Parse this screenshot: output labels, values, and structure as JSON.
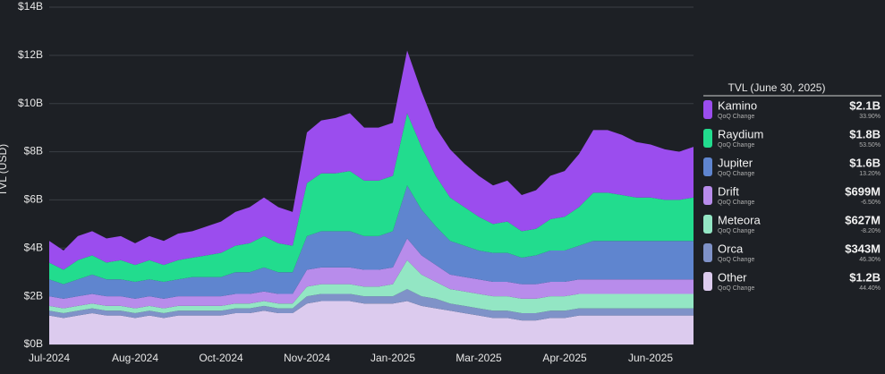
{
  "chart_data": {
    "type": "stacked-area",
    "y_label": "TVL (USD)",
    "legend_title": "TVL (June 30, 2025)",
    "qoq_caption": "QoQ Change",
    "categories": [
      "Jul-2024",
      null,
      null,
      null,
      null,
      null,
      "Aug-2024",
      null,
      null,
      null,
      null,
      null,
      "Oct-2024",
      null,
      null,
      null,
      null,
      null,
      "Nov-2024",
      null,
      null,
      null,
      null,
      null,
      "Jan-2025",
      null,
      null,
      null,
      null,
      null,
      "Mar-2025",
      null,
      null,
      null,
      null,
      null,
      "Apr-2025",
      null,
      null,
      null,
      null,
      null,
      "Jun-2025",
      null,
      null,
      null
    ],
    "ylim": [
      0,
      14
    ],
    "yticks": [
      {
        "value": 0,
        "label": "$0B"
      },
      {
        "value": 2,
        "label": "$2B"
      },
      {
        "value": 4,
        "label": "$4B"
      },
      {
        "value": 6,
        "label": "$6B"
      },
      {
        "value": 8,
        "label": "$8B"
      },
      {
        "value": 10,
        "label": "$10B"
      },
      {
        "value": 12,
        "label": "$12B"
      },
      {
        "value": 14,
        "label": "$14B"
      }
    ],
    "grid": true,
    "series": [
      {
        "name": "Kamino",
        "color": "#9b4dee",
        "total": "$2.1B",
        "qoq_change": "33.90%",
        "values": [
          0.9,
          0.8,
          1.0,
          1.0,
          1.0,
          1.0,
          0.9,
          1.0,
          1.0,
          1.1,
          1.1,
          1.2,
          1.3,
          1.4,
          1.5,
          1.6,
          1.5,
          1.4,
          2.1,
          2.2,
          2.3,
          2.4,
          2.2,
          2.2,
          2.2,
          2.6,
          2.3,
          2.0,
          2.0,
          1.8,
          1.7,
          1.6,
          1.7,
          1.5,
          1.6,
          1.8,
          1.9,
          2.2,
          2.6,
          2.6,
          2.5,
          2.3,
          2.2,
          2.1,
          2.0,
          2.1
        ]
      },
      {
        "name": "Raydium",
        "color": "#22dc8e",
        "total": "$1.8B",
        "qoq_change": "53.50%",
        "values": [
          0.7,
          0.6,
          0.8,
          0.8,
          0.7,
          0.8,
          0.7,
          0.8,
          0.7,
          0.8,
          0.8,
          0.9,
          1.0,
          1.1,
          1.2,
          1.3,
          1.2,
          1.1,
          2.2,
          2.4,
          2.4,
          2.5,
          2.3,
          2.3,
          2.3,
          3.0,
          2.6,
          2.1,
          1.8,
          1.6,
          1.4,
          1.2,
          1.3,
          1.1,
          1.1,
          1.3,
          1.4,
          1.6,
          2.0,
          2.0,
          1.9,
          1.8,
          1.8,
          1.7,
          1.7,
          1.8
        ]
      },
      {
        "name": "Jupiter",
        "color": "#5f85cf",
        "total": "$1.6B",
        "qoq_change": "13.20%",
        "values": [
          0.7,
          0.6,
          0.7,
          0.8,
          0.7,
          0.7,
          0.7,
          0.7,
          0.7,
          0.7,
          0.8,
          0.8,
          0.8,
          0.9,
          0.9,
          1.0,
          0.9,
          0.9,
          1.4,
          1.5,
          1.5,
          1.5,
          1.4,
          1.4,
          1.5,
          2.2,
          1.9,
          1.6,
          1.4,
          1.3,
          1.2,
          1.2,
          1.2,
          1.1,
          1.2,
          1.3,
          1.3,
          1.4,
          1.6,
          1.6,
          1.6,
          1.6,
          1.6,
          1.6,
          1.6,
          1.6
        ]
      },
      {
        "name": "Drift",
        "color": "#b88ceb",
        "total": "$699M",
        "qoq_change": "-6.50%",
        "values": [
          0.4,
          0.4,
          0.4,
          0.4,
          0.4,
          0.4,
          0.4,
          0.4,
          0.4,
          0.4,
          0.4,
          0.4,
          0.4,
          0.4,
          0.4,
          0.4,
          0.4,
          0.4,
          0.7,
          0.7,
          0.7,
          0.7,
          0.7,
          0.7,
          0.7,
          0.9,
          0.8,
          0.7,
          0.6,
          0.6,
          0.6,
          0.6,
          0.6,
          0.6,
          0.6,
          0.6,
          0.6,
          0.6,
          0.6,
          0.6,
          0.6,
          0.6,
          0.6,
          0.6,
          0.6,
          0.6
        ]
      },
      {
        "name": "Meteora",
        "color": "#93e6c4",
        "total": "$627M",
        "qoq_change": "-8.20%",
        "values": [
          0.2,
          0.2,
          0.2,
          0.2,
          0.2,
          0.2,
          0.2,
          0.2,
          0.2,
          0.2,
          0.2,
          0.2,
          0.2,
          0.2,
          0.2,
          0.2,
          0.2,
          0.2,
          0.4,
          0.4,
          0.4,
          0.4,
          0.4,
          0.4,
          0.5,
          1.2,
          0.9,
          0.7,
          0.6,
          0.6,
          0.6,
          0.6,
          0.6,
          0.6,
          0.6,
          0.6,
          0.6,
          0.6,
          0.6,
          0.6,
          0.6,
          0.6,
          0.6,
          0.6,
          0.6,
          0.6
        ]
      },
      {
        "name": "Orca",
        "color": "#7f92c8",
        "total": "$343M",
        "qoq_change": "46.30%",
        "values": [
          0.2,
          0.2,
          0.2,
          0.2,
          0.2,
          0.2,
          0.2,
          0.2,
          0.2,
          0.2,
          0.2,
          0.2,
          0.2,
          0.2,
          0.2,
          0.2,
          0.2,
          0.2,
          0.3,
          0.3,
          0.3,
          0.3,
          0.3,
          0.3,
          0.3,
          0.5,
          0.4,
          0.4,
          0.3,
          0.3,
          0.3,
          0.3,
          0.3,
          0.3,
          0.3,
          0.3,
          0.3,
          0.3,
          0.3,
          0.3,
          0.3,
          0.3,
          0.3,
          0.3,
          0.3,
          0.3
        ]
      },
      {
        "name": "Other",
        "color": "#dccbee",
        "total": "$1.2B",
        "qoq_change": "44.40%",
        "values": [
          1.2,
          1.1,
          1.2,
          1.3,
          1.2,
          1.2,
          1.1,
          1.2,
          1.1,
          1.2,
          1.2,
          1.2,
          1.2,
          1.3,
          1.3,
          1.4,
          1.3,
          1.3,
          1.7,
          1.8,
          1.8,
          1.8,
          1.7,
          1.7,
          1.7,
          1.8,
          1.6,
          1.5,
          1.4,
          1.3,
          1.2,
          1.1,
          1.1,
          1.0,
          1.0,
          1.1,
          1.1,
          1.2,
          1.2,
          1.2,
          1.2,
          1.2,
          1.2,
          1.2,
          1.2,
          1.2
        ]
      }
    ]
  }
}
